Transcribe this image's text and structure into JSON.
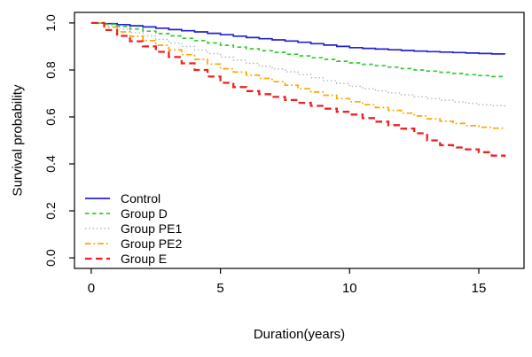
{
  "figure": {
    "background": "#ffffff",
    "border_color": "#000000"
  },
  "chart_data": {
    "type": "line",
    "subtype": "kaplan-meier-step",
    "title": "",
    "xlabel": "Duration(years)",
    "ylabel": "Survival probability",
    "xlim": [
      0,
      16
    ],
    "ylim": [
      0.0,
      1.0
    ],
    "x_ticks": [
      0,
      5,
      10,
      15
    ],
    "y_ticks": [
      "0.0",
      "0.2",
      "0.4",
      "0.6",
      "0.8",
      "1.0"
    ],
    "grid": false,
    "legend_position": "bottom-left",
    "legend_box": false,
    "x": [
      0,
      0.5,
      1,
      1.5,
      2,
      2.5,
      3,
      3.5,
      4,
      4.5,
      5,
      5.5,
      6,
      6.5,
      7,
      7.5,
      8,
      8.5,
      9,
      9.5,
      10,
      10.5,
      11,
      11.5,
      12,
      12.5,
      13,
      13.5,
      14,
      14.5,
      15,
      15.5,
      16
    ],
    "series": [
      {
        "name": "Control",
        "color": "#2222d4",
        "linestyle": "solid",
        "width": 1.7,
        "y": [
          1.0,
          0.997,
          0.993,
          0.988,
          0.983,
          0.978,
          0.972,
          0.967,
          0.962,
          0.956,
          0.95,
          0.944,
          0.938,
          0.933,
          0.928,
          0.923,
          0.918,
          0.912,
          0.906,
          0.9,
          0.895,
          0.892,
          0.889,
          0.886,
          0.883,
          0.88,
          0.878,
          0.876,
          0.874,
          0.872,
          0.87,
          0.868,
          0.866
        ]
      },
      {
        "name": "Group D",
        "color": "#33cc33",
        "linestyle": "dashed",
        "width": 1.7,
        "y": [
          1.0,
          0.995,
          0.985,
          0.975,
          0.965,
          0.955,
          0.945,
          0.935,
          0.925,
          0.915,
          0.905,
          0.897,
          0.89,
          0.882,
          0.875,
          0.867,
          0.86,
          0.852,
          0.845,
          0.837,
          0.83,
          0.824,
          0.818,
          0.812,
          0.806,
          0.8,
          0.795,
          0.79,
          0.785,
          0.78,
          0.776,
          0.772,
          0.769
        ]
      },
      {
        "name": "Group PE1",
        "color": "#b3b3c8",
        "linestyle": "dotted",
        "width": 1.4,
        "y": [
          1.0,
          0.988,
          0.973,
          0.959,
          0.945,
          0.93,
          0.915,
          0.9,
          0.885,
          0.87,
          0.855,
          0.841,
          0.828,
          0.816,
          0.804,
          0.792,
          0.78,
          0.767,
          0.754,
          0.742,
          0.73,
          0.72,
          0.711,
          0.702,
          0.694,
          0.686,
          0.678,
          0.671,
          0.664,
          0.658,
          0.652,
          0.648,
          0.644
        ]
      },
      {
        "name": "Group PE2",
        "color": "#ffa500",
        "linestyle": "dashdot",
        "width": 1.7,
        "y": [
          1.0,
          0.982,
          0.962,
          0.943,
          0.925,
          0.905,
          0.885,
          0.865,
          0.845,
          0.825,
          0.805,
          0.791,
          0.778,
          0.764,
          0.75,
          0.735,
          0.72,
          0.706,
          0.692,
          0.678,
          0.665,
          0.652,
          0.64,
          0.628,
          0.616,
          0.604,
          0.592,
          0.582,
          0.572,
          0.563,
          0.556,
          0.552,
          0.548
        ]
      },
      {
        "name": "Group E",
        "color": "#ee2222",
        "linestyle": "longdash",
        "width": 2.3,
        "y": [
          1.0,
          0.97,
          0.945,
          0.922,
          0.9,
          0.877,
          0.855,
          0.828,
          0.8,
          0.772,
          0.745,
          0.727,
          0.71,
          0.697,
          0.685,
          0.672,
          0.66,
          0.647,
          0.635,
          0.622,
          0.61,
          0.595,
          0.58,
          0.565,
          0.55,
          0.53,
          0.5,
          0.48,
          0.47,
          0.462,
          0.45,
          0.435,
          0.43
        ]
      }
    ]
  }
}
